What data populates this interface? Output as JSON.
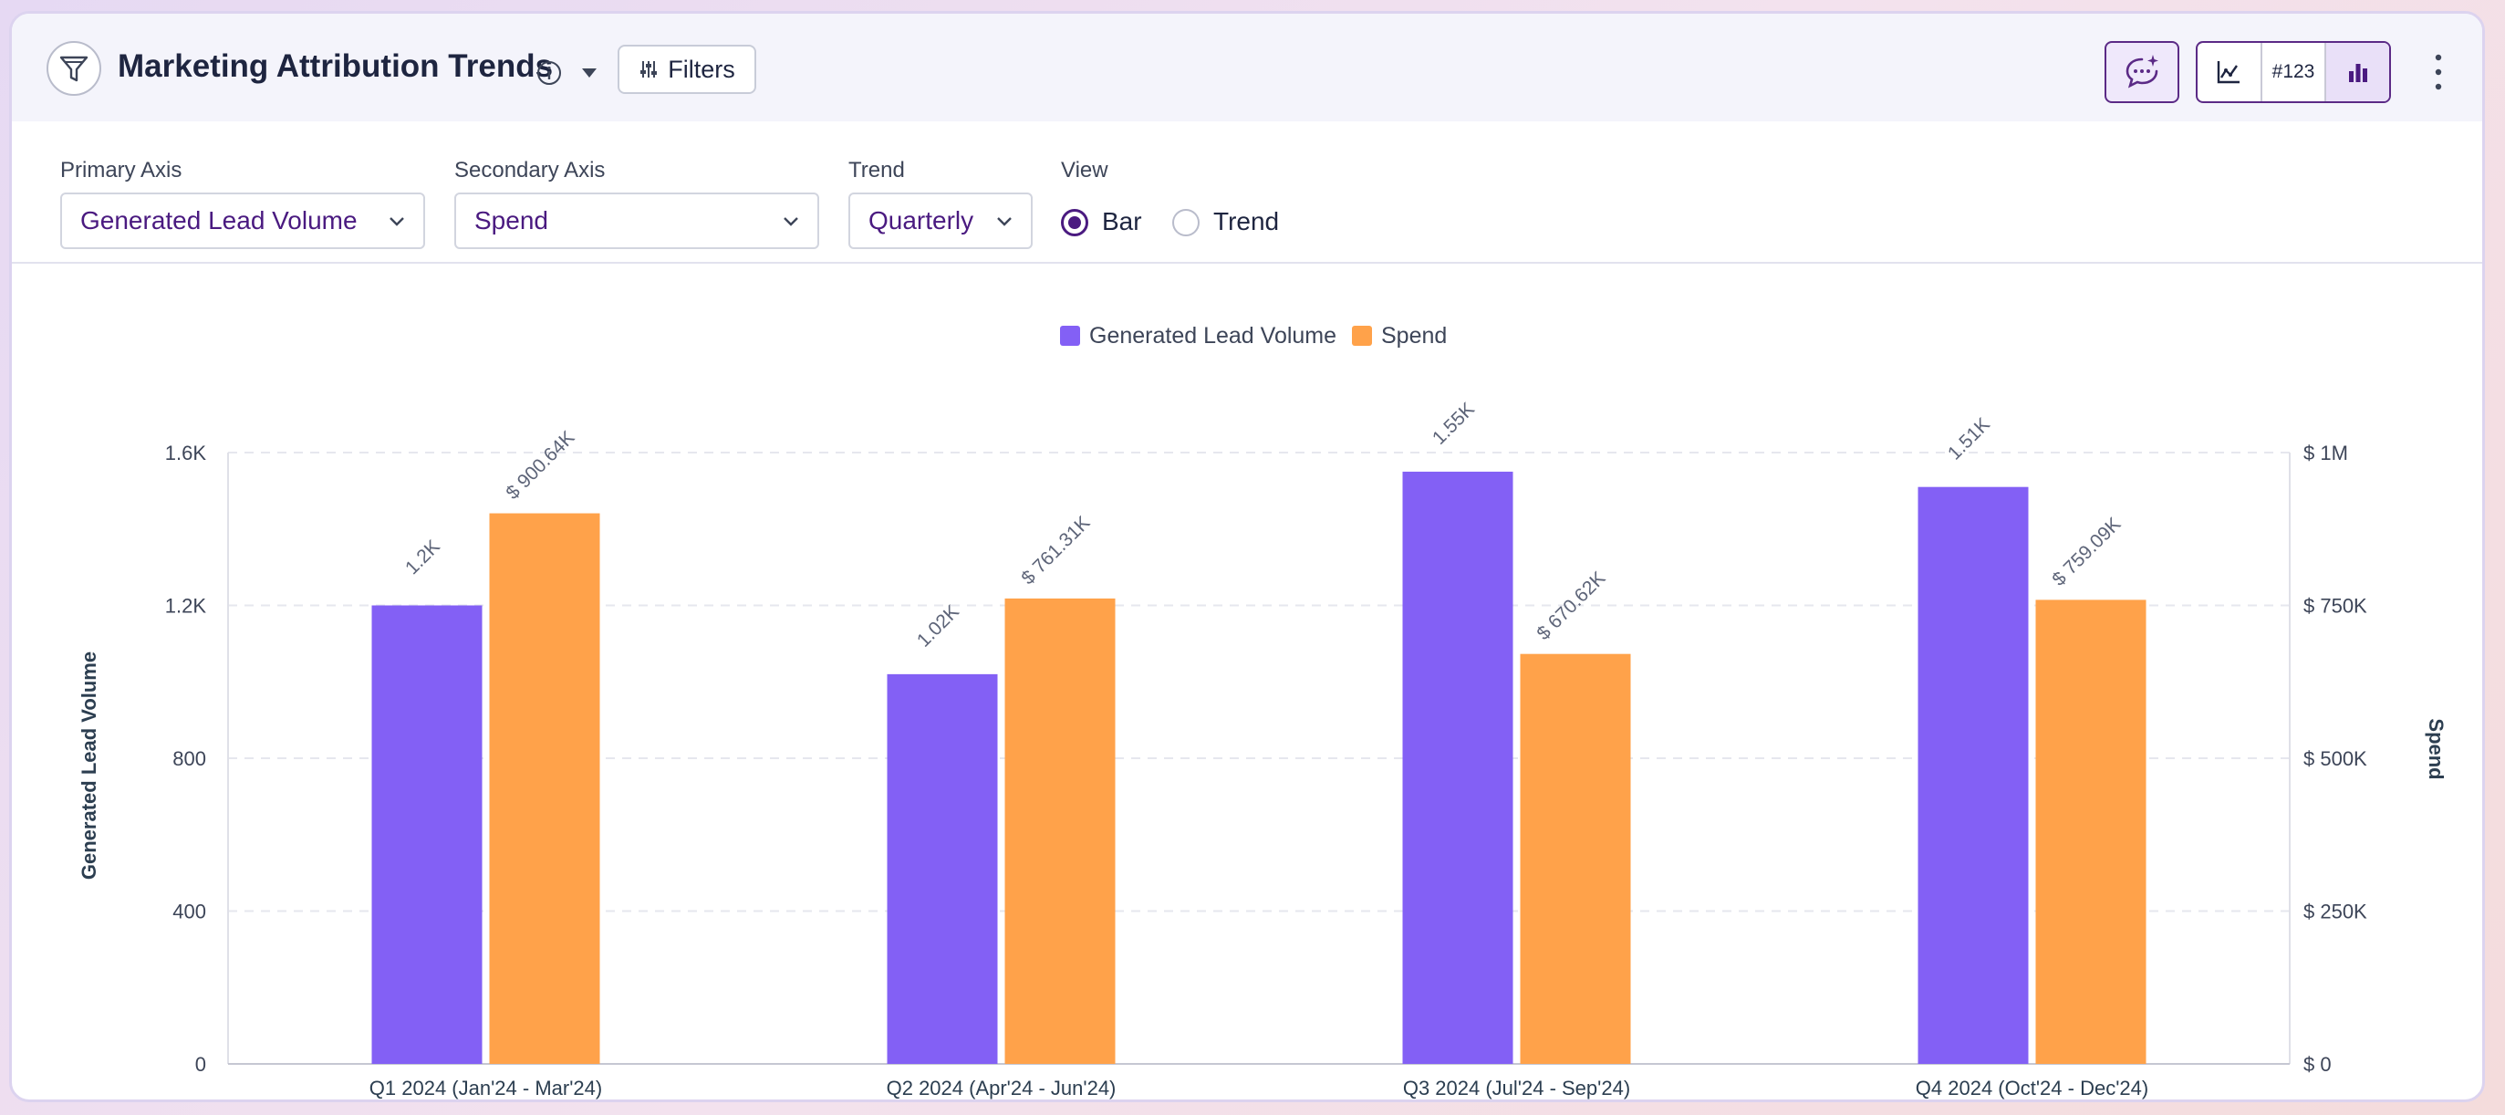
{
  "header": {
    "title": "Marketing Attribution Trends",
    "filters_label": "Filters",
    "number_view_label": "#123"
  },
  "controls": {
    "primary_axis": {
      "label": "Primary Axis",
      "value": "Generated Lead Volume"
    },
    "secondary_axis": {
      "label": "Secondary Axis",
      "value": "Spend"
    },
    "trend": {
      "label": "Trend",
      "value": "Quarterly"
    },
    "view": {
      "label": "View",
      "options": [
        "Bar",
        "Trend"
      ],
      "selected": "Bar"
    }
  },
  "colors": {
    "primary": "#8360f5",
    "secondary": "#ffa24a",
    "accent": "#4a1a80"
  },
  "icons": [
    "funnel-icon",
    "info-icon",
    "caret-down-icon",
    "sliders-icon",
    "ai-chat-icon",
    "line-chart-icon",
    "bar-chart-icon",
    "kebab-menu-icon",
    "chevron-down-icon"
  ],
  "chart_data": {
    "type": "bar",
    "categories": [
      "Q1 2024 (Jan'24 - Mar'24)",
      "Q2 2024 (Apr'24 - Jun'24)",
      "Q3 2024 (Jul'24 - Sep'24)",
      "Q4 2024 (Oct'24 - Dec'24)"
    ],
    "series": [
      {
        "name": "Generated Lead Volume",
        "axis": "left",
        "values": [
          1200,
          1020,
          1550,
          1510
        ],
        "labels": [
          "1.2K",
          "1.02K",
          "1.55K",
          "1.51K"
        ]
      },
      {
        "name": "Spend",
        "axis": "right",
        "values": [
          900640,
          761310,
          670620,
          759090
        ],
        "labels": [
          "$ 900.64K",
          "$ 761.31K",
          "$ 670.62K",
          "$ 759.09K"
        ]
      }
    ],
    "ylabel": "Generated Lead Volume",
    "ylabel_right": "Spend",
    "ylim": [
      0,
      1600
    ],
    "ylim_right": [
      0,
      1000000
    ],
    "yticks": [
      "0",
      "400",
      "800",
      "1.2K",
      "1.6K"
    ],
    "yticks_right": [
      "$ 0",
      "$ 250K",
      "$ 500K",
      "$ 750K",
      "$ 1M"
    ],
    "grid": true,
    "legend": "top-center"
  }
}
